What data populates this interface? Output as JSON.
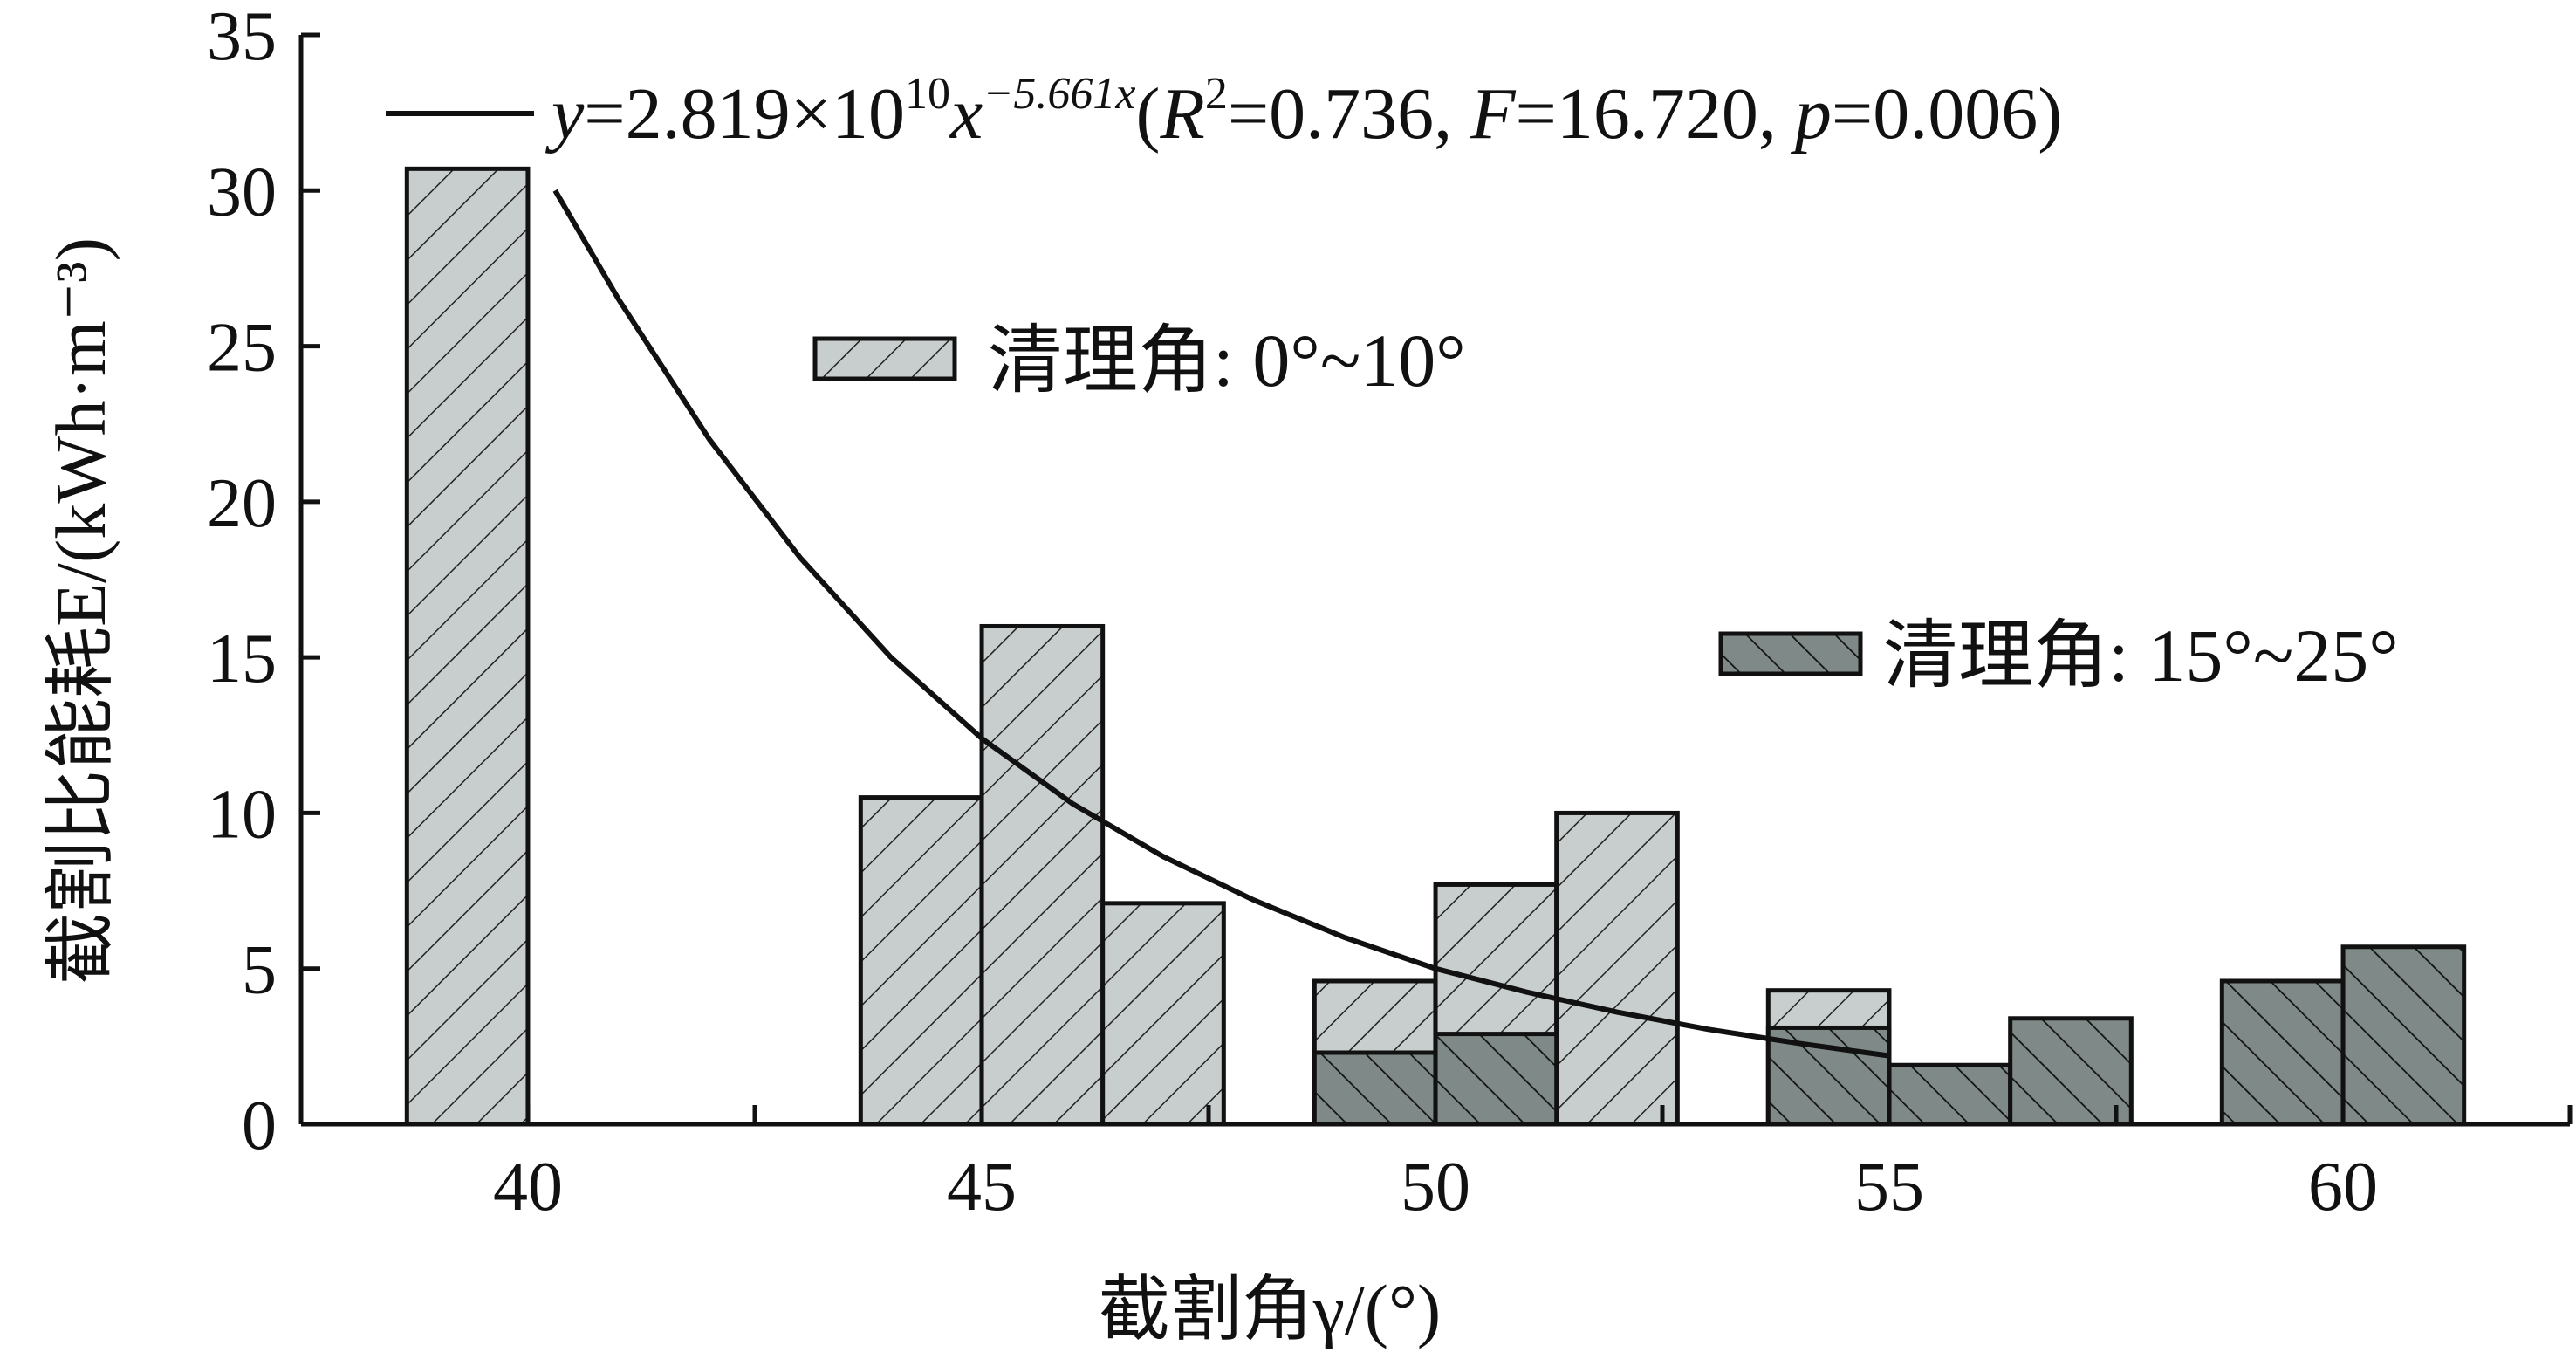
{
  "chart_data": {
    "type": "bar",
    "xlabel": "截割角γ/(°)",
    "ylabel": "截割比能耗E/(kWh·m⁻³)",
    "ylim": [
      0,
      35
    ],
    "xlim": [
      37.5,
      62.5
    ],
    "yticks": [
      0,
      5,
      10,
      15,
      20,
      25,
      30,
      35
    ],
    "xticks": [
      40,
      45,
      50,
      55,
      60
    ],
    "grid": false,
    "legend": [
      {
        "key": "light",
        "label": "清理角: 0°~10°"
      },
      {
        "key": "dark",
        "label": "清理角: 15°~25°"
      }
    ],
    "bars": [
      {
        "x": 39.333,
        "value": 30.7,
        "series": "light"
      },
      {
        "x": 44.333,
        "value": 10.5,
        "series": "light"
      },
      {
        "x": 45.667,
        "value": 16.0,
        "series": "light"
      },
      {
        "x": 47.0,
        "value": 7.1,
        "series": "light"
      },
      {
        "x": 49.333,
        "value": 4.6,
        "series": "light"
      },
      {
        "x": 50.667,
        "value": 7.7,
        "series": "light"
      },
      {
        "x": 52.0,
        "value": 10.0,
        "series": "light"
      },
      {
        "x": 54.333,
        "value": 4.3,
        "series": "light"
      },
      {
        "x": 49.333,
        "value": 2.3,
        "series": "dark"
      },
      {
        "x": 50.667,
        "value": 2.9,
        "series": "dark"
      },
      {
        "x": 54.333,
        "value": 3.1,
        "series": "dark"
      },
      {
        "x": 55.667,
        "value": 1.9,
        "series": "dark"
      },
      {
        "x": 57.0,
        "value": 3.4,
        "series": "dark"
      },
      {
        "x": 59.333,
        "value": 4.6,
        "series": "dark"
      },
      {
        "x": 60.667,
        "value": 5.7,
        "series": "dark"
      }
    ],
    "bar_width": 1.333,
    "fit": {
      "y": "y",
      "equals": "=2.819×10",
      "exp10": "10",
      "x": "x",
      "exp_x": "−5.661x",
      "open": "(",
      "R": "R",
      "R_exp": "2",
      "r2": "=0.736, ",
      "F": "F",
      "f_val": "=16.720, ",
      "p": "p",
      "p_val": "=0.006)",
      "curve": [
        [
          40.3,
          30.0
        ],
        [
          41,
          26.5
        ],
        [
          42,
          22.0
        ],
        [
          43,
          18.2
        ],
        [
          44,
          15.0
        ],
        [
          45,
          12.4
        ],
        [
          46,
          10.3
        ],
        [
          47,
          8.6
        ],
        [
          48,
          7.2
        ],
        [
          49,
          6.0
        ],
        [
          50,
          5.0
        ],
        [
          51,
          4.25
        ],
        [
          52,
          3.6
        ],
        [
          53,
          3.05
        ],
        [
          54,
          2.6
        ],
        [
          55,
          2.2
        ]
      ]
    },
    "colors": {
      "light": "#c8cdcd",
      "dark": "#7f8988",
      "stroke": "#111111"
    }
  }
}
